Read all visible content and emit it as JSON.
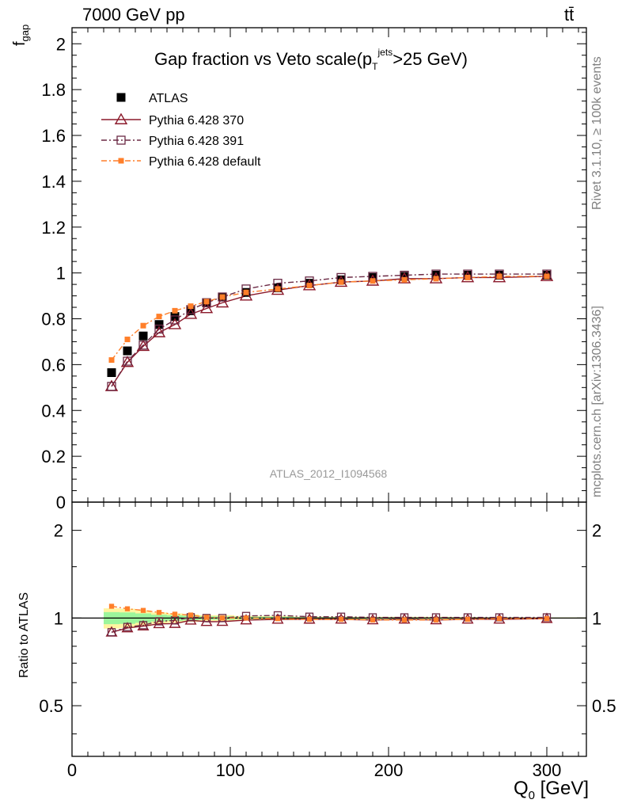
{
  "header": {
    "left": "7000 GeV pp",
    "right": "tt̄"
  },
  "title": {
    "main": "Gap fraction vs Veto scale",
    "paren_open": "(p",
    "sup": "jets",
    "sub": "T",
    "paren_close": ">25 GeV)"
  },
  "side_labels": {
    "rivet": "Rivet 3.1.10, ≥ 100k events",
    "mcplots": "mcplots.cern.ch [arXiv:1306.3436]"
  },
  "analysis_id": "ATLAS_2012_I1094568",
  "chart_data": {
    "type": "scatter",
    "title": "Gap fraction vs Veto scale",
    "xlabel": "Q0 [GeV]",
    "ylabel_top": "f_gap",
    "ylabel_bottom": "Ratio to ATLAS",
    "xlim": [
      0,
      325
    ],
    "ylim_top": [
      0,
      2.07
    ],
    "ylim_bottom_log": [
      0.335,
      2.5
    ],
    "x_ticks": [
      0,
      100,
      200,
      300
    ],
    "x_tick_labels": [
      "0",
      "100",
      "200",
      "300"
    ],
    "y_ticks_top": [
      0,
      0.2,
      0.4,
      0.6,
      0.8,
      1,
      1.2,
      1.4,
      1.6,
      1.8,
      2
    ],
    "y_tick_labels_top": [
      "0",
      "0.2",
      "0.4",
      "0.6",
      "0.8",
      "1",
      "1.2",
      "1.4",
      "1.6",
      "1.8",
      "2"
    ],
    "y_ticks_bottom": [
      0.5,
      1,
      2
    ],
    "y_tick_labels_bottom": [
      "0.5",
      "1",
      "2"
    ],
    "legend_position": "top-left",
    "x": [
      25,
      35,
      45,
      55,
      65,
      75,
      85,
      95,
      110,
      130,
      150,
      170,
      190,
      210,
      230,
      250,
      270,
      300
    ],
    "series": [
      {
        "name": "ATLAS",
        "marker": "filled-square",
        "color": "#000000",
        "values": [
          0.565,
          0.66,
          0.725,
          0.775,
          0.81,
          0.835,
          0.87,
          0.895,
          0.915,
          0.935,
          0.955,
          0.97,
          0.98,
          0.985,
          0.99,
          0.99,
          0.99,
          0.99
        ],
        "band_low": [
          0.52,
          0.61,
          0.68,
          0.74,
          0.78,
          0.81,
          0.85,
          0.875,
          0.9,
          0.92,
          0.945,
          0.96,
          0.97,
          0.975,
          0.98,
          0.982,
          0.984,
          0.985
        ],
        "band_high": [
          0.61,
          0.71,
          0.77,
          0.81,
          0.84,
          0.86,
          0.89,
          0.915,
          0.93,
          0.95,
          0.965,
          0.98,
          0.99,
          0.995,
          1.0,
          0.998,
          0.996,
          0.995
        ]
      },
      {
        "name": "Pythia 6.428 370",
        "marker": "open-triangle",
        "color": "#8b1a2b",
        "line": "solid",
        "values": [
          0.505,
          0.61,
          0.68,
          0.74,
          0.775,
          0.82,
          0.845,
          0.87,
          0.9,
          0.925,
          0.945,
          0.96,
          0.965,
          0.975,
          0.975,
          0.98,
          0.98,
          0.985
        ]
      },
      {
        "name": "Pythia 6.428 391",
        "marker": "open-square",
        "color": "#6b2a45",
        "line": "dashdot",
        "values": [
          0.505,
          0.615,
          0.685,
          0.755,
          0.795,
          0.84,
          0.87,
          0.895,
          0.93,
          0.955,
          0.965,
          0.98,
          0.985,
          0.99,
          0.995,
          0.995,
          0.995,
          0.995
        ]
      },
      {
        "name": "Pythia 6.428 default",
        "marker": "filled-small-square",
        "color": "#ff7f2a",
        "line": "dashdot",
        "values": [
          0.62,
          0.71,
          0.77,
          0.81,
          0.835,
          0.855,
          0.875,
          0.895,
          0.915,
          0.93,
          0.945,
          0.96,
          0.965,
          0.97,
          0.975,
          0.98,
          0.985,
          0.985
        ]
      }
    ],
    "legend_entries": [
      "ATLAS",
      "Pythia 6.428 370",
      "Pythia 6.428 391",
      "Pythia 6.428 default"
    ],
    "band_colors": {
      "inner": "#9cf59c",
      "outer": "#fff4a0"
    }
  }
}
